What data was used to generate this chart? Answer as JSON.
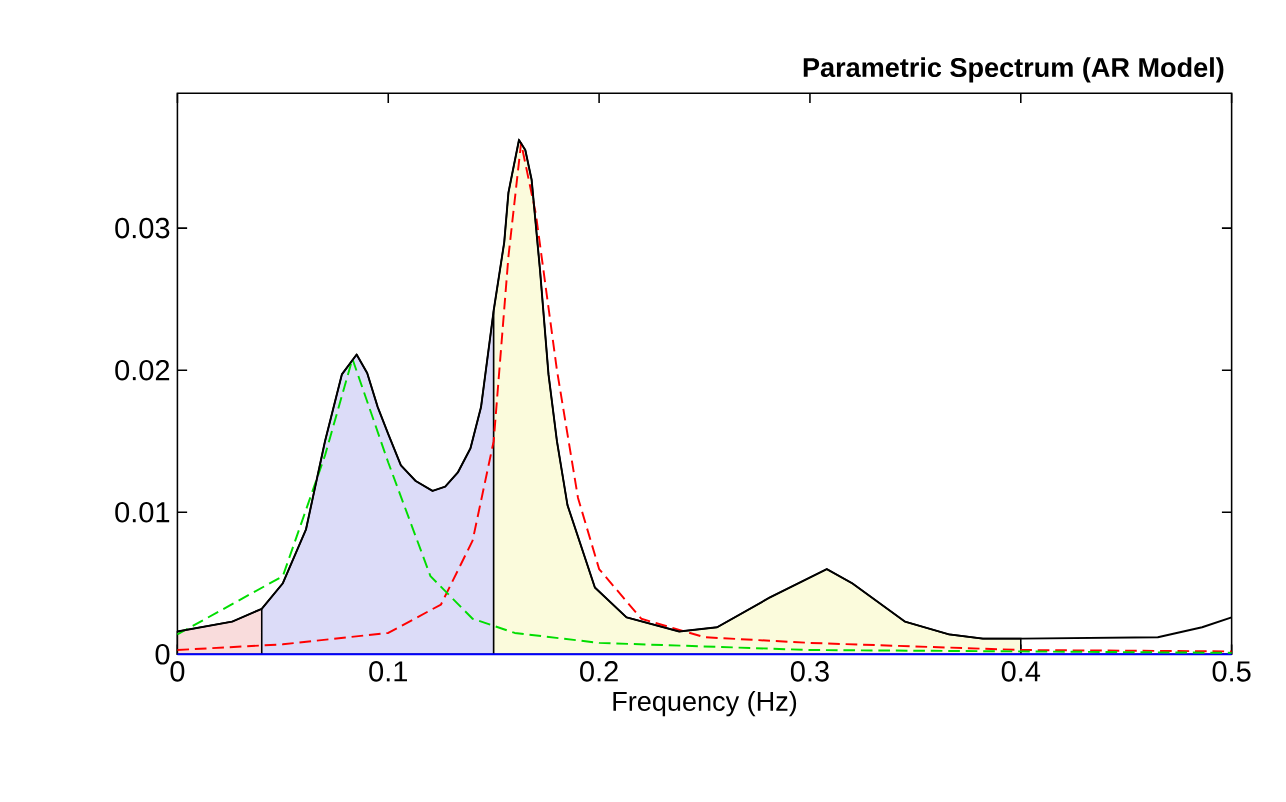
{
  "chart_data": {
    "type": "line",
    "title": "Parametric Spectrum (AR Model)",
    "xlabel": "Frequency (Hz)",
    "xlim": [
      0,
      0.5
    ],
    "ylim": [
      0,
      0.0395
    ],
    "xticks": [
      0,
      0.1,
      0.2,
      0.3,
      0.4,
      0.5
    ],
    "yticks": [
      0,
      0.01,
      0.02,
      0.03
    ],
    "grid": false,
    "marker": "none",
    "series": [
      {
        "type": "area",
        "color": "#f9dcdc",
        "x": [
          0,
          0.026,
          0.04
        ],
        "values": [
          0.0016,
          0.0023,
          0.0032
        ]
      },
      {
        "type": "area",
        "color": "#dcdcf8",
        "x": [
          0.04,
          0.05,
          0.061,
          0.07,
          0.078,
          0.085,
          0.09,
          0.095,
          0.1,
          0.106,
          0.113,
          0.121,
          0.127,
          0.133,
          0.139,
          0.144,
          0.15
        ],
        "values": [
          0.0032,
          0.005,
          0.0088,
          0.015,
          0.0197,
          0.0211,
          0.0198,
          0.0174,
          0.0155,
          0.0133,
          0.0122,
          0.0115,
          0.0118,
          0.0128,
          0.0145,
          0.0174,
          0.0242
        ]
      },
      {
        "type": "area",
        "color": "#fbfbdc",
        "x": [
          0.15,
          0.155,
          0.157,
          0.162,
          0.165,
          0.168,
          0.172,
          0.176,
          0.18,
          0.185,
          0.198,
          0.213,
          0.238,
          0.256,
          0.281,
          0.308,
          0.32,
          0.345,
          0.366,
          0.382,
          0.4
        ],
        "values": [
          0.0242,
          0.029,
          0.0325,
          0.0362,
          0.0355,
          0.0334,
          0.027,
          0.0197,
          0.015,
          0.0105,
          0.0047,
          0.0026,
          0.0016,
          0.0019,
          0.004,
          0.006,
          0.005,
          0.0023,
          0.0014,
          0.0011,
          0.0011
        ]
      },
      {
        "color": "#000000",
        "line_style": "solid",
        "x": [
          0,
          0.026,
          0.04,
          0.05,
          0.061,
          0.07,
          0.078,
          0.085,
          0.09,
          0.095,
          0.1,
          0.106,
          0.113,
          0.121,
          0.127,
          0.133,
          0.139,
          0.144,
          0.15,
          0.155,
          0.157,
          0.162,
          0.165,
          0.168,
          0.172,
          0.176,
          0.18,
          0.185,
          0.198,
          0.213,
          0.238,
          0.256,
          0.281,
          0.308,
          0.32,
          0.345,
          0.366,
          0.382,
          0.4,
          0.465,
          0.486,
          0.5
        ],
        "values": [
          0.0016,
          0.0023,
          0.0032,
          0.005,
          0.0088,
          0.015,
          0.0197,
          0.0211,
          0.0198,
          0.0174,
          0.0155,
          0.0133,
          0.0122,
          0.0115,
          0.0118,
          0.0128,
          0.0145,
          0.0174,
          0.0242,
          0.029,
          0.0325,
          0.0362,
          0.0355,
          0.0334,
          0.027,
          0.0197,
          0.015,
          0.0105,
          0.0047,
          0.0026,
          0.0016,
          0.0019,
          0.004,
          0.006,
          0.005,
          0.0023,
          0.0014,
          0.0011,
          0.0011,
          0.0012,
          0.0019,
          0.0026
        ]
      },
      {
        "color": "#00dd00",
        "line_style": "dashed",
        "x": [
          0,
          0.05,
          0.07,
          0.083,
          0.1,
          0.12,
          0.14,
          0.16,
          0.2,
          0.3,
          0.5
        ],
        "values": [
          0.0014,
          0.0055,
          0.014,
          0.0208,
          0.0135,
          0.0055,
          0.0025,
          0.0015,
          0.0008,
          0.0003,
          0.0001
        ]
      },
      {
        "color": "#ff0000",
        "line_style": "dashed",
        "x": [
          0,
          0.05,
          0.1,
          0.125,
          0.14,
          0.15,
          0.157,
          0.163,
          0.17,
          0.18,
          0.19,
          0.2,
          0.22,
          0.25,
          0.3,
          0.4,
          0.5
        ],
        "values": [
          0.0003,
          0.0007,
          0.0015,
          0.0035,
          0.008,
          0.015,
          0.028,
          0.036,
          0.031,
          0.02,
          0.011,
          0.006,
          0.0025,
          0.0012,
          0.0008,
          0.0003,
          0.0002
        ]
      },
      {
        "color": "#0000ff",
        "line_style": "solid",
        "x": [
          0,
          0.5
        ],
        "values": [
          0,
          0
        ]
      }
    ]
  }
}
